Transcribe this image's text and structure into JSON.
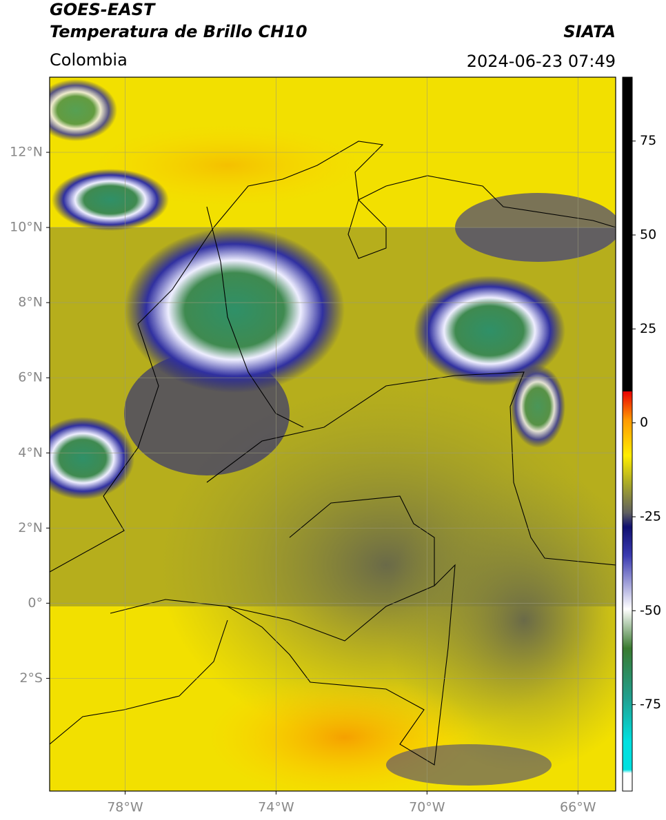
{
  "header": {
    "title": "GOES-EAST",
    "subtitle": "Temperatura de Brillo CH10",
    "source": "SIATA",
    "region": "Colombia",
    "datetime": "2024-06-23 07:49"
  },
  "map": {
    "xlim": [
      -80,
      -65
    ],
    "ylim": [
      -5,
      14
    ],
    "xticks": [
      {
        "value": -78,
        "label": "78°W"
      },
      {
        "value": -74,
        "label": "74°W"
      },
      {
        "value": -70,
        "label": "70°W"
      },
      {
        "value": -66,
        "label": "66°W"
      }
    ],
    "yticks": [
      {
        "value": 12,
        "label": "12°N"
      },
      {
        "value": 10,
        "label": "10°N"
      },
      {
        "value": 8,
        "label": "8°N"
      },
      {
        "value": 6,
        "label": "6°N"
      },
      {
        "value": 4,
        "label": "4°N"
      },
      {
        "value": 2,
        "label": "2°N"
      },
      {
        "value": 0,
        "label": "0°"
      },
      {
        "value": -2,
        "label": "2°S"
      }
    ],
    "grid": true
  },
  "colorbar": {
    "clim": [
      -98,
      92
    ],
    "ticks": [
      75,
      50,
      25,
      0,
      -25,
      -50,
      -75
    ]
  }
}
